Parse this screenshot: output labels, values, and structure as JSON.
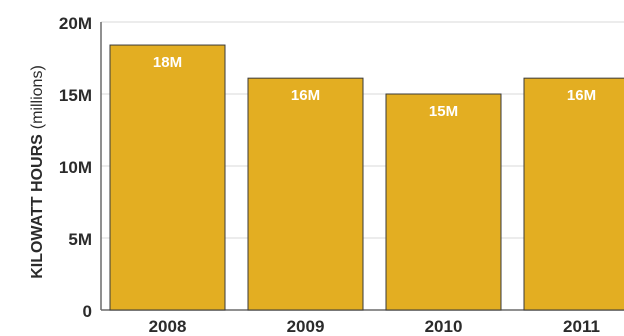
{
  "chart_data": {
    "type": "bar",
    "categories": [
      "2008",
      "2009",
      "2010",
      "2011"
    ],
    "values": [
      18.4,
      16.1,
      15.0,
      16.1
    ],
    "data_labels": [
      "18M",
      "16M",
      "15M",
      "16M"
    ],
    "y_ticks": [
      "0",
      "5M",
      "10M",
      "15M",
      "20M"
    ],
    "y_tick_values": [
      0,
      5,
      10,
      15,
      20
    ],
    "ylim": [
      0,
      20
    ],
    "ylabel_main": "KILOWATT HOURS",
    "ylabel_unit": "(millions)",
    "grid": true,
    "bar_color": "#E3AE22",
    "bar_stroke": "#3a3a3a",
    "grid_color": "#d9d9d9",
    "text_color": "#2b2b2b",
    "label_color": "#ffffff"
  }
}
